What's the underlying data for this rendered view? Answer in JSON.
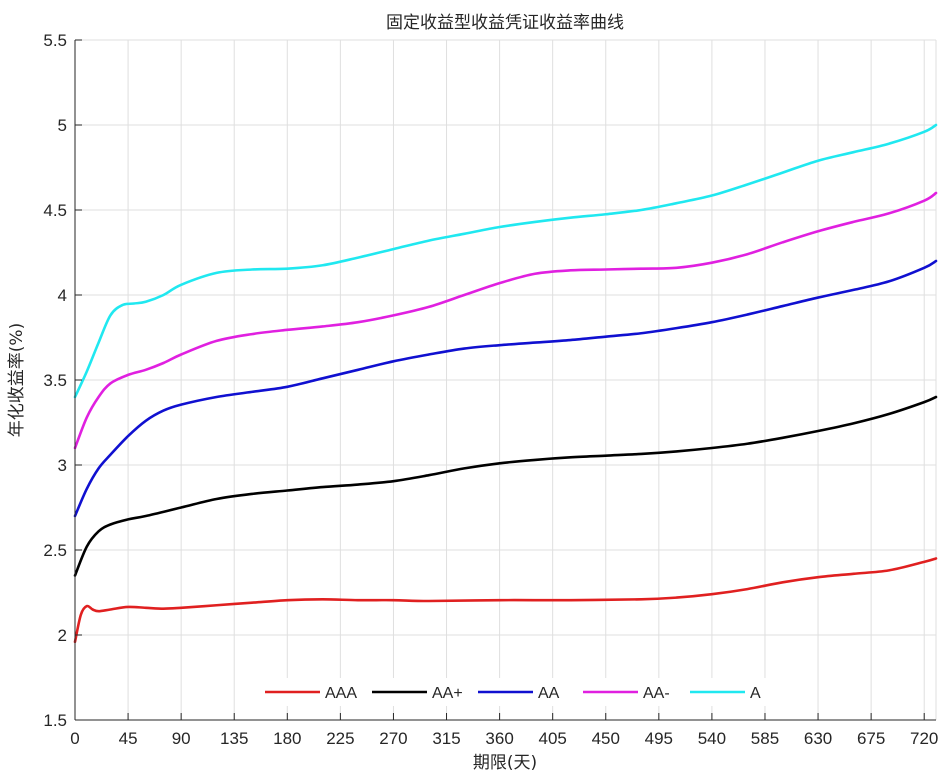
{
  "chart_data": {
    "type": "line",
    "title": "固定收益型收益凭证收益率曲线",
    "xlabel": "期限(天)",
    "ylabel": "年化收益率(%)",
    "xlim": [
      0,
      730
    ],
    "ylim": [
      1.5,
      5.5
    ],
    "xticks": [
      0,
      45,
      90,
      135,
      180,
      225,
      270,
      315,
      360,
      405,
      450,
      495,
      540,
      585,
      630,
      675,
      720
    ],
    "yticks": [
      1.5,
      2,
      2.5,
      3,
      3.5,
      4,
      4.5,
      5,
      5.5
    ],
    "xtick_labels": [
      "0",
      "45",
      "90",
      "135",
      "180",
      "225",
      "270",
      "315",
      "360",
      "405",
      "450",
      "495",
      "540",
      "585",
      "630",
      "675",
      "720"
    ],
    "ytick_labels": [
      "1.5",
      "2",
      "2.5",
      "3",
      "3.5",
      "4",
      "4.5",
      "5",
      "5.5"
    ],
    "grid": true,
    "legend_position": "bottom-center",
    "series": [
      {
        "name": "AAA",
        "color": "#e02020",
        "x": [
          0,
          5,
          10,
          15,
          20,
          30,
          45,
          60,
          75,
          90,
          120,
          150,
          180,
          210,
          240,
          270,
          300,
          360,
          420,
          480,
          510,
          540,
          570,
          600,
          630,
          660,
          690,
          720,
          730
        ],
        "y": [
          1.96,
          2.12,
          2.17,
          2.15,
          2.14,
          2.15,
          2.165,
          2.16,
          2.155,
          2.16,
          2.175,
          2.19,
          2.205,
          2.21,
          2.205,
          2.205,
          2.2,
          2.205,
          2.205,
          2.21,
          2.22,
          2.24,
          2.27,
          2.31,
          2.34,
          2.36,
          2.38,
          2.43,
          2.45
        ]
      },
      {
        "name": "AA+",
        "color": "#000000",
        "x": [
          0,
          10,
          20,
          30,
          45,
          60,
          90,
          120,
          150,
          180,
          210,
          240,
          270,
          300,
          330,
          360,
          390,
          420,
          450,
          480,
          510,
          540,
          570,
          600,
          630,
          660,
          690,
          720,
          730
        ],
        "y": [
          2.35,
          2.52,
          2.61,
          2.65,
          2.68,
          2.7,
          2.75,
          2.8,
          2.83,
          2.85,
          2.87,
          2.885,
          2.905,
          2.94,
          2.98,
          3.01,
          3.03,
          3.045,
          3.055,
          3.065,
          3.08,
          3.1,
          3.125,
          3.16,
          3.2,
          3.245,
          3.3,
          3.37,
          3.4
        ]
      },
      {
        "name": "AA",
        "color": "#1010d0",
        "x": [
          0,
          10,
          20,
          30,
          45,
          60,
          75,
          90,
          120,
          150,
          180,
          210,
          240,
          270,
          300,
          330,
          360,
          390,
          420,
          450,
          480,
          510,
          540,
          570,
          600,
          630,
          660,
          690,
          720,
          730
        ],
        "y": [
          2.7,
          2.86,
          2.98,
          3.06,
          3.17,
          3.26,
          3.32,
          3.355,
          3.4,
          3.43,
          3.46,
          3.51,
          3.56,
          3.61,
          3.65,
          3.685,
          3.705,
          3.72,
          3.735,
          3.755,
          3.775,
          3.805,
          3.84,
          3.885,
          3.935,
          3.985,
          4.03,
          4.08,
          4.16,
          4.2
        ]
      },
      {
        "name": "AA-",
        "color": "#e020e0",
        "x": [
          0,
          10,
          20,
          30,
          45,
          60,
          75,
          90,
          120,
          150,
          180,
          210,
          240,
          270,
          300,
          330,
          360,
          390,
          420,
          450,
          480,
          510,
          540,
          570,
          600,
          630,
          660,
          690,
          720,
          730
        ],
        "y": [
          3.1,
          3.28,
          3.4,
          3.48,
          3.53,
          3.56,
          3.6,
          3.65,
          3.73,
          3.77,
          3.795,
          3.815,
          3.84,
          3.88,
          3.93,
          4.0,
          4.07,
          4.125,
          4.145,
          4.15,
          4.155,
          4.16,
          4.19,
          4.24,
          4.31,
          4.375,
          4.43,
          4.48,
          4.555,
          4.6
        ]
      },
      {
        "name": "A",
        "color": "#20e8f0",
        "x": [
          0,
          10,
          20,
          30,
          40,
          50,
          60,
          75,
          90,
          120,
          150,
          180,
          210,
          240,
          270,
          300,
          330,
          360,
          390,
          420,
          450,
          480,
          510,
          540,
          570,
          600,
          630,
          660,
          690,
          720,
          730
        ],
        "y": [
          3.4,
          3.55,
          3.72,
          3.88,
          3.94,
          3.95,
          3.96,
          4.0,
          4.06,
          4.13,
          4.15,
          4.155,
          4.175,
          4.22,
          4.27,
          4.32,
          4.36,
          4.4,
          4.43,
          4.455,
          4.475,
          4.5,
          4.54,
          4.585,
          4.65,
          4.72,
          4.79,
          4.84,
          4.89,
          4.96,
          5.0
        ]
      }
    ]
  }
}
